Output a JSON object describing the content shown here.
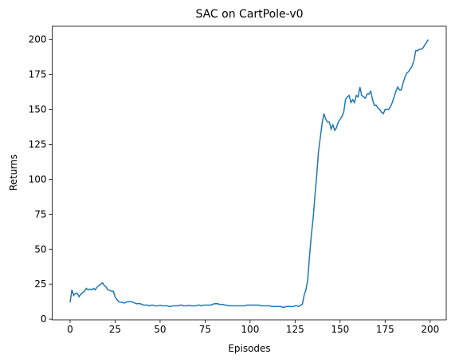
{
  "chart_data": {
    "type": "line",
    "title": "SAC on CartPole-v0",
    "x_label": "Episodes",
    "y_label": "Returns",
    "color": "#1f77b4",
    "x": [
      0,
      1,
      2,
      3,
      4,
      5,
      6,
      7,
      8,
      9,
      10,
      11,
      12,
      13,
      14,
      15,
      16,
      17,
      18,
      19,
      20,
      21,
      22,
      23,
      24,
      25,
      26,
      27,
      28,
      29,
      30,
      31,
      32,
      33,
      34,
      35,
      36,
      37,
      38,
      39,
      40,
      41,
      42,
      43,
      44,
      45,
      46,
      47,
      48,
      49,
      50,
      51,
      52,
      53,
      54,
      55,
      56,
      57,
      58,
      59,
      60,
      61,
      62,
      63,
      64,
      65,
      66,
      67,
      68,
      69,
      70,
      71,
      72,
      73,
      74,
      75,
      76,
      77,
      78,
      79,
      80,
      81,
      82,
      83,
      84,
      85,
      86,
      87,
      88,
      89,
      90,
      91,
      92,
      93,
      94,
      95,
      96,
      97,
      98,
      99,
      100,
      101,
      102,
      103,
      104,
      105,
      106,
      107,
      108,
      109,
      110,
      111,
      112,
      113,
      114,
      115,
      116,
      117,
      118,
      119,
      120,
      121,
      122,
      123,
      124,
      125,
      126,
      127,
      128,
      129,
      130,
      131,
      132,
      133,
      134,
      135,
      136,
      137,
      138,
      139,
      140,
      141,
      142,
      143,
      144,
      145,
      146,
      147,
      148,
      149,
      150,
      151,
      152,
      153,
      154,
      155,
      156,
      157,
      158,
      159,
      160,
      161,
      162,
      163,
      164,
      165,
      166,
      167,
      168,
      169,
      170,
      171,
      172,
      173,
      174,
      175,
      176,
      177,
      178,
      179,
      180,
      181,
      182,
      183,
      184,
      185,
      186,
      187,
      188,
      189,
      190,
      191,
      192,
      193,
      194,
      195,
      196,
      197,
      198,
      199
    ],
    "values": [
      12,
      21,
      17,
      18.5,
      18.5,
      16,
      18,
      19,
      20,
      22,
      21,
      21.5,
      21,
      22,
      21,
      23,
      24,
      25,
      26,
      24,
      23,
      21,
      20.5,
      20,
      20,
      16,
      14,
      12.5,
      12,
      12,
      11.5,
      12,
      12.5,
      12.5,
      12.5,
      12,
      11.5,
      11,
      11,
      11,
      10.5,
      10,
      10,
      10,
      9.5,
      10,
      10,
      9.5,
      9.5,
      9.5,
      10,
      9.5,
      9.5,
      9.5,
      9.5,
      9,
      9,
      9.5,
      9.5,
      9.5,
      9.5,
      10,
      10,
      9.5,
      9.5,
      9.5,
      10,
      9.5,
      9.5,
      9.5,
      9.5,
      10,
      10,
      9.5,
      10,
      10,
      10,
      10,
      10,
      10.5,
      11,
      11,
      11,
      10.5,
      10.5,
      10.5,
      10,
      10,
      9.5,
      9.5,
      9.5,
      9.5,
      9.5,
      9.5,
      9.5,
      9.5,
      9.5,
      9.5,
      10,
      10,
      10,
      10,
      10,
      10,
      10,
      10,
      9.5,
      9.5,
      9.5,
      9.5,
      9.5,
      9.5,
      9,
      9,
      9,
      9,
      9,
      9,
      8.5,
      8.5,
      9,
      9,
      9,
      9,
      9,
      9.5,
      9.5,
      9,
      10,
      10.5,
      17,
      21,
      28,
      45,
      60,
      72,
      88,
      103,
      120,
      130,
      140,
      147,
      143,
      141,
      141,
      136,
      139,
      135,
      137,
      141,
      143,
      145,
      148,
      157,
      159,
      160,
      155,
      157,
      155,
      160,
      159,
      166,
      160,
      159,
      158,
      161,
      161,
      163,
      157,
      153,
      153,
      151,
      150,
      148,
      147,
      150,
      150,
      150,
      152,
      155,
      159,
      163,
      166,
      164,
      164,
      169,
      173,
      176,
      177,
      179,
      181,
      185,
      192,
      192,
      193,
      193,
      194,
      196,
      198,
      200
    ],
    "xlim": [
      -9.95,
      208.95
    ],
    "ylim": [
      -0.5,
      209.5
    ],
    "xticks": [
      0,
      25,
      50,
      75,
      100,
      125,
      150,
      175,
      200
    ],
    "yticks": [
      0,
      25,
      50,
      75,
      100,
      125,
      150,
      175,
      200
    ]
  }
}
